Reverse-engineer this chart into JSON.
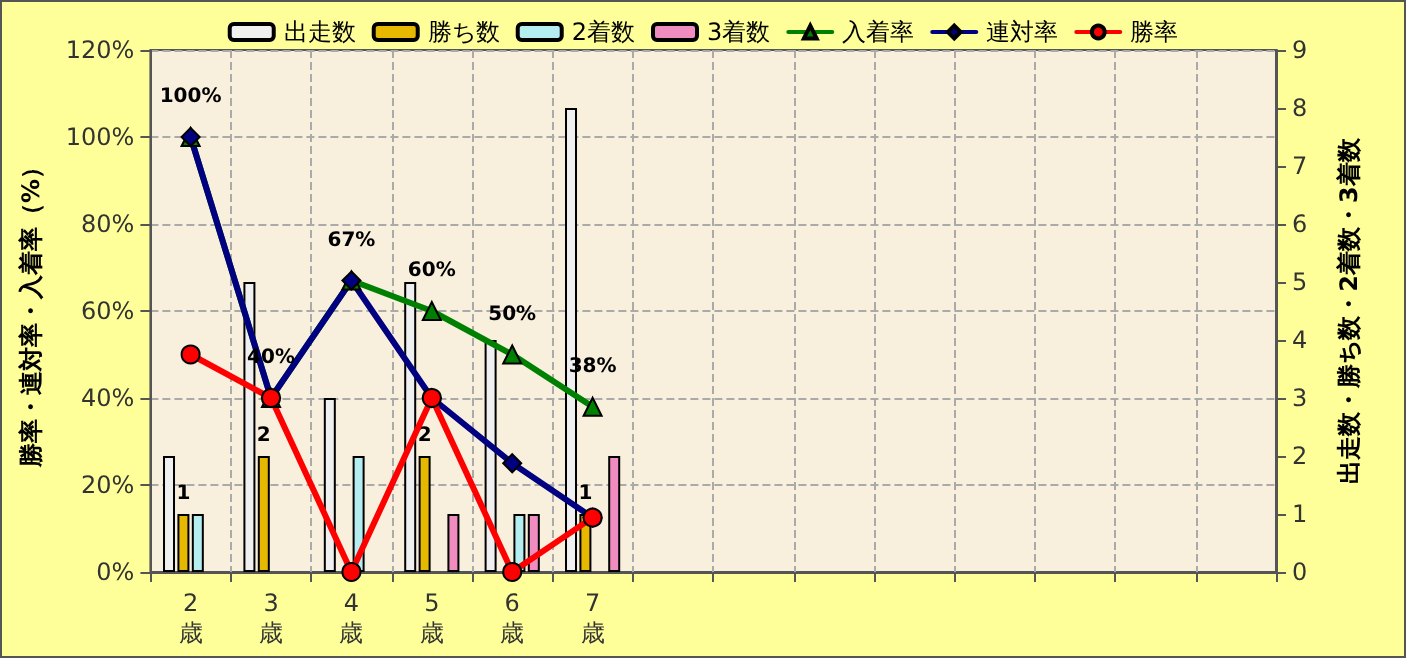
{
  "chart_data": {
    "type": "bar",
    "categories": [
      "2歳",
      "3歳",
      "4歳",
      "5歳",
      "6歳",
      "7歳",
      null,
      null,
      null,
      null,
      null,
      null,
      null,
      null
    ],
    "ylabel": "勝率・連対率・入着率（%）",
    "y2label": "出走数・勝ち数・2着数・3着数",
    "series": [
      {
        "name": "出走数",
        "axis": "y2",
        "color": "#f0f0f0",
        "values": [
          2,
          5,
          3,
          5,
          4,
          8,
          null,
          null,
          null,
          null,
          null,
          null,
          null,
          null
        ]
      },
      {
        "name": "勝ち数",
        "axis": "y2",
        "color": "#e6b800",
        "values": [
          1,
          2,
          0,
          2,
          0,
          1,
          null,
          null,
          null,
          null,
          null,
          null,
          null,
          null
        ],
        "value_labels": [
          "1",
          "2",
          null,
          "2",
          null,
          "1",
          null,
          null,
          null,
          null,
          null,
          null,
          null,
          null
        ]
      },
      {
        "name": "2着数",
        "axis": "y2",
        "color": "#b4eef0",
        "values": [
          1,
          0,
          2,
          0,
          1,
          0,
          null,
          null,
          null,
          null,
          null,
          null,
          null,
          null
        ]
      },
      {
        "name": "3着数",
        "axis": "y2",
        "color": "#f08cc0",
        "values": [
          0,
          0,
          0,
          1,
          1,
          2,
          null,
          null,
          null,
          null,
          null,
          null,
          null,
          null
        ]
      },
      {
        "name": "入着率",
        "type": "line",
        "color": "#008000",
        "marker": "triangle",
        "values": [
          100,
          40,
          67,
          60,
          50,
          38,
          null,
          null,
          null,
          null,
          null,
          null,
          null,
          null
        ],
        "value_labels": [
          "100%",
          "40%",
          "67%",
          "60%",
          "50%",
          "38%",
          null,
          null,
          null,
          null,
          null,
          null,
          null,
          null
        ]
      },
      {
        "name": "連対率",
        "type": "line",
        "color": "#000080",
        "marker": "diamond",
        "values": [
          100,
          40,
          67,
          40,
          25,
          12.5,
          null,
          null,
          null,
          null,
          null,
          null,
          null,
          null
        ]
      },
      {
        "name": "勝率",
        "type": "line",
        "color": "#ff0000",
        "marker": "circle",
        "values": [
          50,
          40,
          0,
          40,
          0,
          12.5,
          null,
          null,
          null,
          null,
          null,
          null,
          null,
          null
        ]
      }
    ],
    "ylim": [
      0,
      120
    ],
    "yticks": [
      {
        "value": 0,
        "label": "0%"
      },
      {
        "value": 20,
        "label": "20%"
      },
      {
        "value": 40,
        "label": "40%"
      },
      {
        "value": 60,
        "label": "60%"
      },
      {
        "value": 80,
        "label": "80%"
      },
      {
        "value": 100,
        "label": "100%"
      },
      {
        "value": 120,
        "label": "120%"
      }
    ],
    "y2lim": [
      0,
      9
    ],
    "y2ticks": [
      0,
      1,
      2,
      3,
      4,
      5,
      6,
      7,
      8,
      9
    ],
    "grid": true,
    "legend": "top"
  }
}
